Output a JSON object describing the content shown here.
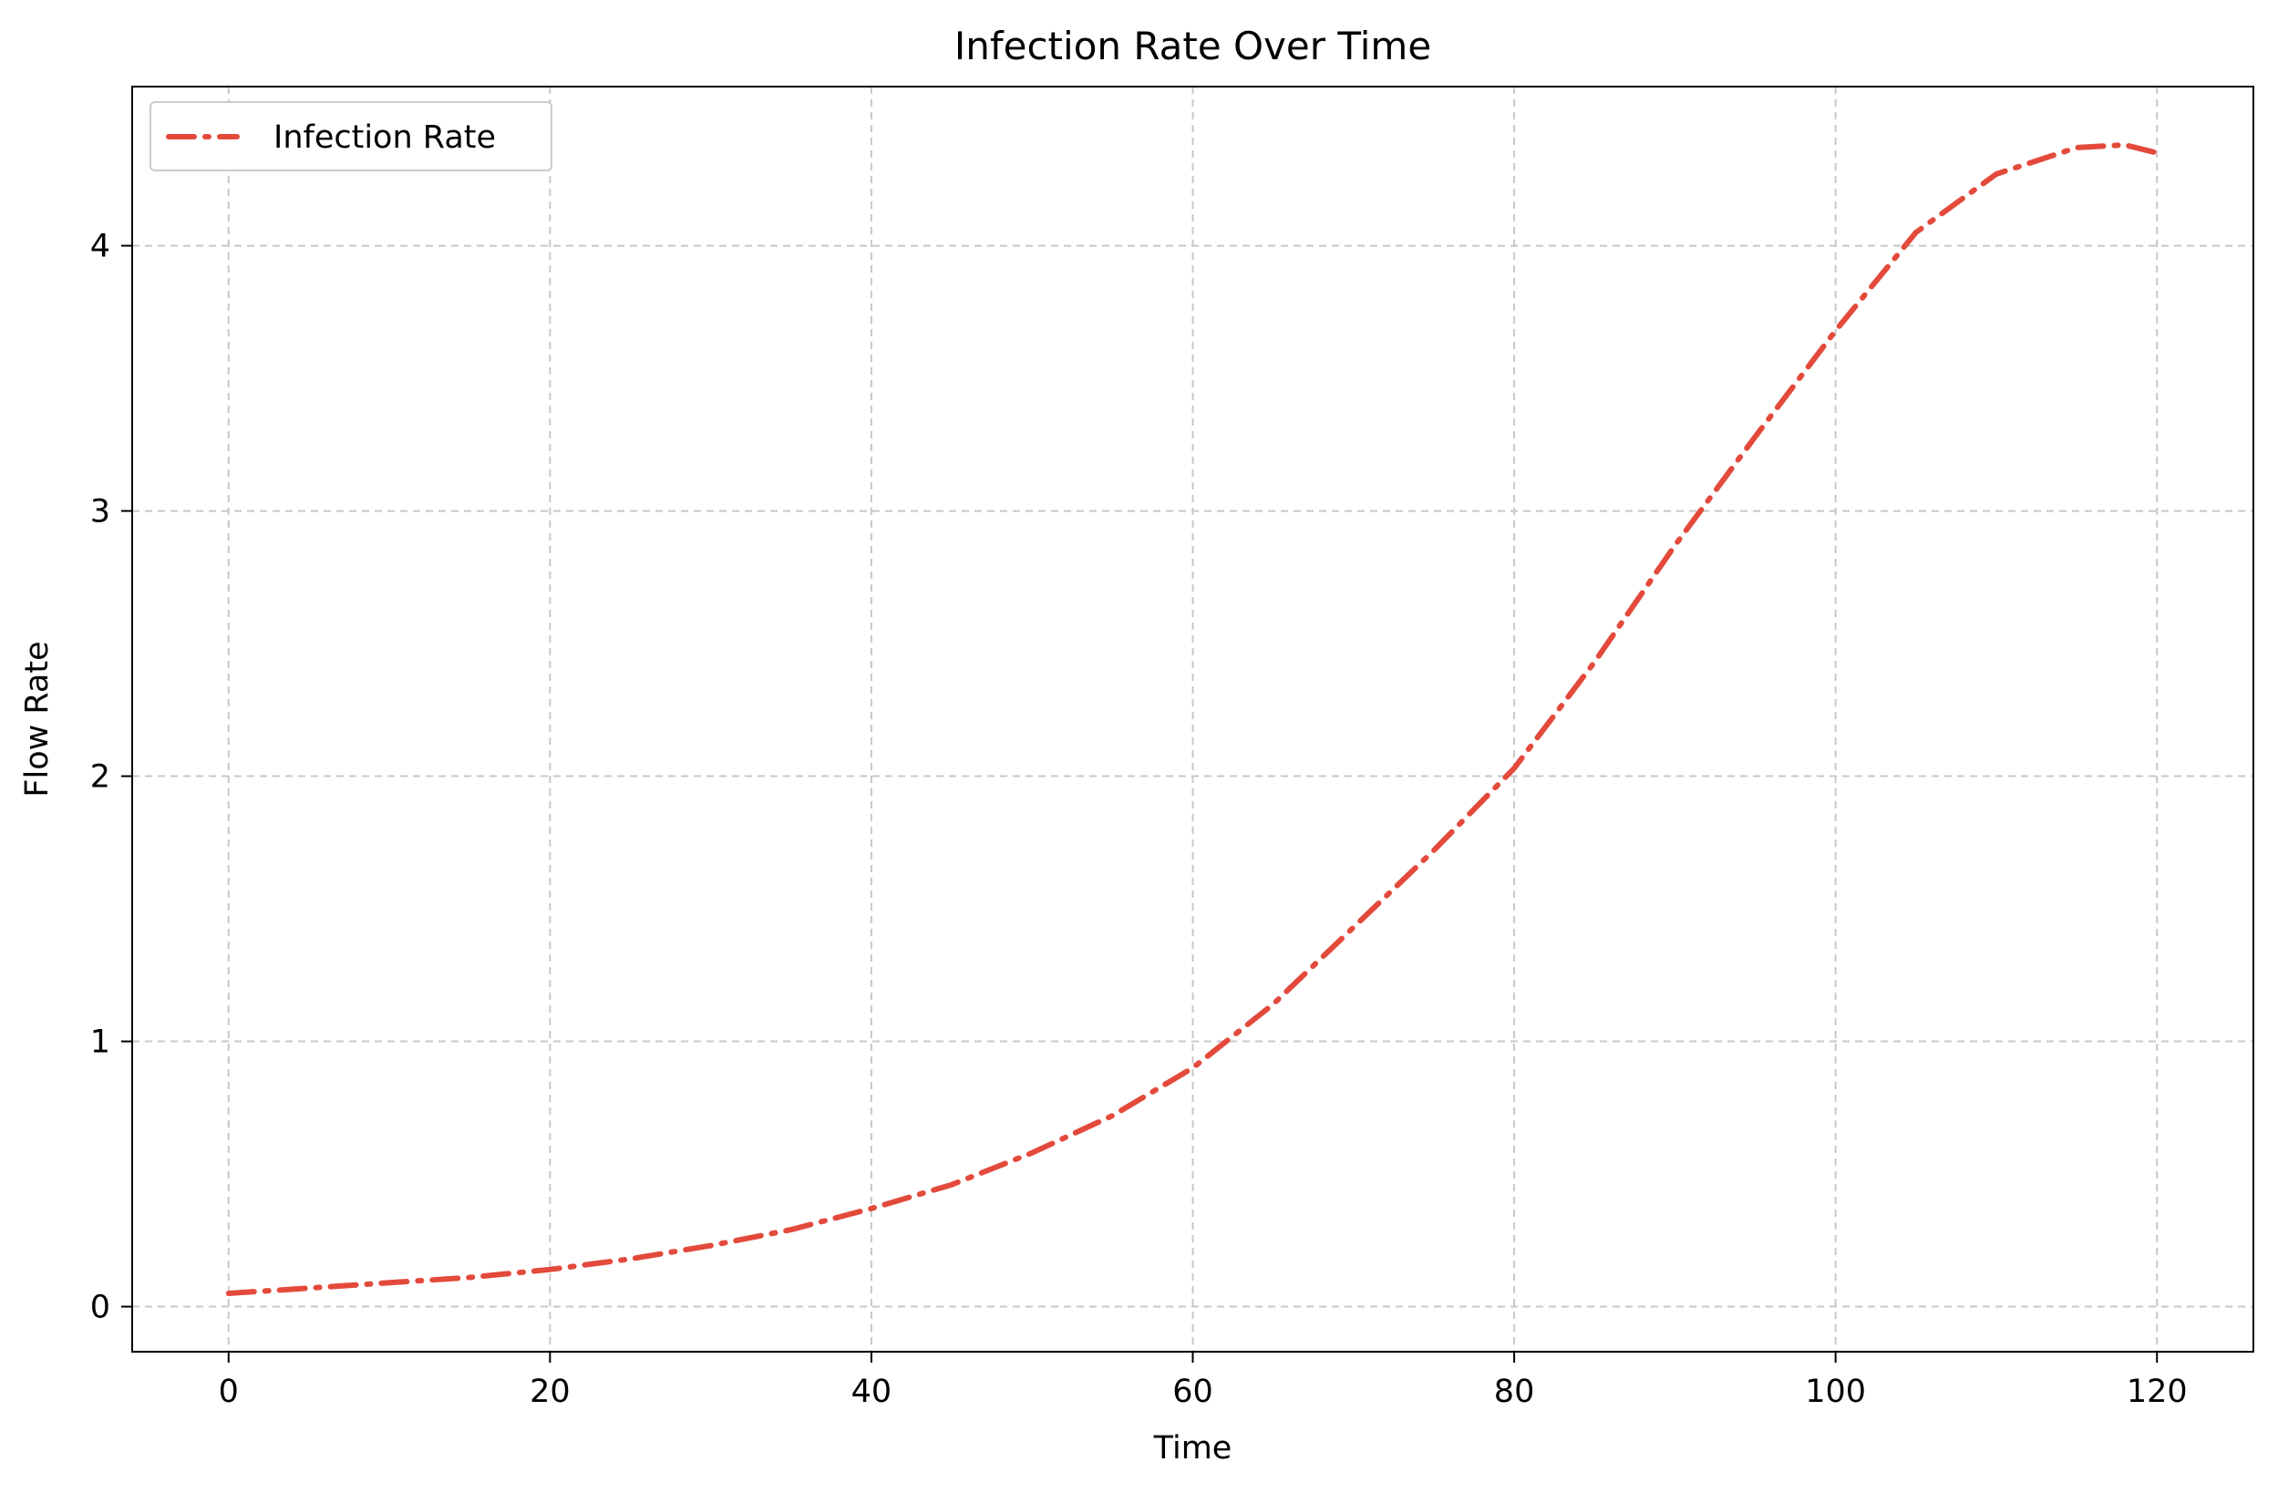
{
  "chart_data": {
    "type": "line",
    "title": "Infection Rate Over Time",
    "xlabel": "Time",
    "ylabel": "Flow Rate",
    "xlim": [
      -6,
      126
    ],
    "ylim": [
      -0.17,
      4.6
    ],
    "xticks": [
      0,
      20,
      40,
      60,
      80,
      100,
      120
    ],
    "yticks": [
      0,
      1,
      2,
      3,
      4
    ],
    "grid": true,
    "legend_position": "top-left",
    "series": [
      {
        "name": "Infection Rate",
        "color": "#e34a3b",
        "line_style": "dash-dot",
        "x": [
          0,
          5,
          10,
          15,
          20,
          25,
          30,
          35,
          40,
          45,
          50,
          55,
          60,
          65,
          70,
          75,
          80,
          85,
          90,
          95,
          100,
          105,
          110,
          115,
          118,
          120
        ],
        "y": [
          0.05,
          0.07,
          0.09,
          0.11,
          0.14,
          0.18,
          0.23,
          0.29,
          0.37,
          0.46,
          0.58,
          0.72,
          0.9,
          1.14,
          1.43,
          1.72,
          2.03,
          2.43,
          2.87,
          3.28,
          3.68,
          4.05,
          4.27,
          4.37,
          4.38,
          4.35
        ]
      }
    ]
  }
}
